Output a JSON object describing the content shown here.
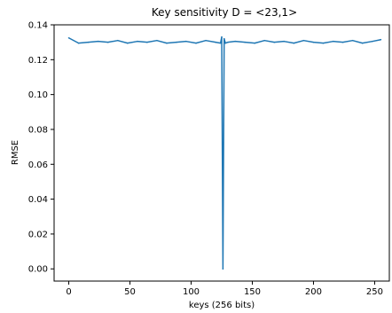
{
  "chart_data": {
    "type": "line",
    "title": "Key sensitivity D = <23,1>",
    "xlabel": "keys (256 bits)",
    "ylabel": "RMSE",
    "xlim": [
      -12,
      262
    ],
    "ylim": [
      -0.007,
      0.14
    ],
    "xticks": [
      0,
      50,
      100,
      150,
      200,
      250
    ],
    "xtick_labels": [
      "0",
      "50",
      "100",
      "150",
      "200",
      "250"
    ],
    "yticks": [
      0.0,
      0.02,
      0.04,
      0.06,
      0.08,
      0.1,
      0.12,
      0.14
    ],
    "ytick_labels": [
      "0.00",
      "0.02",
      "0.04",
      "0.06",
      "0.08",
      "0.10",
      "0.12",
      "0.14"
    ],
    "grid": false,
    "series": [
      {
        "color": "#1f77b4",
        "x": [
          0,
          8,
          16,
          24,
          32,
          40,
          48,
          56,
          64,
          72,
          80,
          88,
          96,
          104,
          112,
          120,
          124,
          125,
          126,
          127,
          128,
          130,
          136,
          144,
          152,
          160,
          168,
          176,
          184,
          192,
          200,
          208,
          216,
          224,
          232,
          240,
          248,
          255
        ],
        "y": [
          0.1325,
          0.1295,
          0.13,
          0.1305,
          0.13,
          0.131,
          0.1295,
          0.1305,
          0.13,
          0.131,
          0.1295,
          0.13,
          0.1305,
          0.1295,
          0.131,
          0.13,
          0.1295,
          0.133,
          0.0,
          0.132,
          0.1295,
          0.13,
          0.1305,
          0.13,
          0.1295,
          0.131,
          0.13,
          0.1305,
          0.1295,
          0.131,
          0.13,
          0.1295,
          0.1305,
          0.13,
          0.131,
          0.1295,
          0.1305,
          0.1315
        ]
      }
    ]
  }
}
